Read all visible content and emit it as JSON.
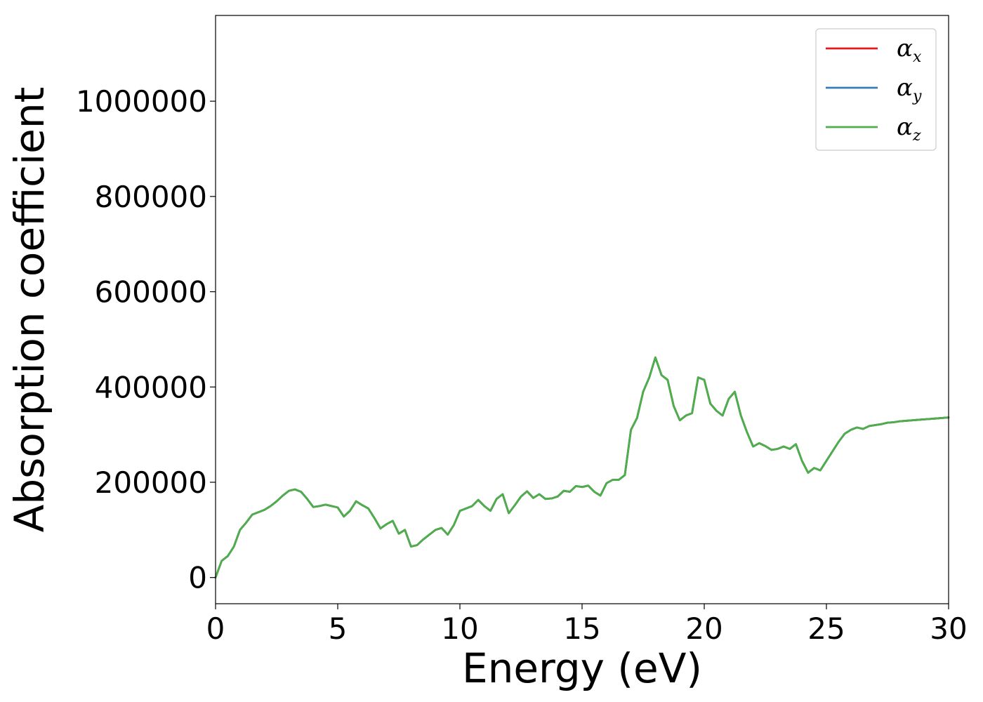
{
  "chart_data": {
    "type": "line",
    "title": "",
    "xlabel": "Energy (eV)",
    "ylabel": "Absorption coefficient",
    "xlim": [
      0,
      30
    ],
    "ylim": [
      -55000,
      1180000
    ],
    "x_ticks": [
      0,
      5,
      10,
      15,
      20,
      25,
      30
    ],
    "x_tick_labels": [
      "0",
      "5",
      "10",
      "15",
      "20",
      "25",
      "30"
    ],
    "y_ticks": [
      0,
      200000,
      400000,
      600000,
      800000,
      1000000
    ],
    "y_tick_labels": [
      "0",
      "200000",
      "400000",
      "600000",
      "800000",
      "1000000"
    ],
    "grid": false,
    "legend_position": "top-right",
    "x": [
      0,
      0.25,
      0.5,
      0.75,
      1.0,
      1.25,
      1.5,
      1.75,
      2.0,
      2.25,
      2.5,
      2.75,
      3.0,
      3.25,
      3.5,
      3.75,
      4.0,
      4.25,
      4.5,
      4.75,
      5.0,
      5.25,
      5.5,
      5.75,
      6.0,
      6.25,
      6.5,
      6.75,
      7.0,
      7.25,
      7.5,
      7.75,
      8.0,
      8.25,
      8.5,
      8.75,
      9.0,
      9.25,
      9.5,
      9.75,
      10.0,
      10.25,
      10.5,
      10.75,
      11.0,
      11.25,
      11.5,
      11.75,
      12.0,
      12.25,
      12.5,
      12.75,
      13.0,
      13.25,
      13.5,
      13.75,
      14.0,
      14.25,
      14.5,
      14.75,
      15.0,
      15.25,
      15.5,
      15.75,
      16.0,
      16.25,
      16.5,
      16.75,
      17.0,
      17.25,
      17.5,
      17.75,
      18.0,
      18.25,
      18.5,
      18.75,
      19.0,
      19.25,
      19.5,
      19.75,
      20.0,
      20.25,
      20.5,
      20.75,
      21.0,
      21.25,
      21.5,
      21.75,
      22.0,
      22.25,
      22.5,
      22.75,
      23.0,
      23.25,
      23.5,
      23.75,
      24.0,
      24.25,
      24.5,
      24.75,
      25.0,
      25.25,
      25.5,
      25.75,
      26.0,
      26.25,
      26.5,
      26.75,
      27.0,
      27.25,
      27.5,
      27.75,
      28.0,
      28.25,
      28.5,
      28.75,
      29.0,
      29.25,
      29.5,
      29.75,
      30.0
    ],
    "series": [
      {
        "name": "α_x",
        "color": "#e41a1c",
        "values": [
          0,
          35000,
          45000,
          65000,
          100000,
          115000,
          132000,
          137000,
          142000,
          150000,
          160000,
          172000,
          182000,
          185000,
          180000,
          165000,
          148000,
          150000,
          153000,
          150000,
          147000,
          128000,
          140000,
          160000,
          152000,
          145000,
          125000,
          103000,
          112000,
          119000,
          92000,
          100000,
          65000,
          68000,
          80000,
          90000,
          100000,
          104000,
          90000,
          110000,
          140000,
          145000,
          150000,
          163000,
          150000,
          140000,
          165000,
          175000,
          135000,
          152000,
          170000,
          181000,
          167000,
          175000,
          165000,
          166000,
          170000,
          182000,
          180000,
          192000,
          190000,
          193000,
          180000,
          172000,
          198000,
          205000,
          205000,
          215000,
          310000,
          335000,
          390000,
          420000,
          462000,
          425000,
          415000,
          360000,
          330000,
          340000,
          345000,
          420000,
          415000,
          365000,
          350000,
          340000,
          375000,
          390000,
          340000,
          305000,
          275000,
          282000,
          276000,
          268000,
          270000,
          275000,
          270000,
          280000,
          245000,
          220000,
          230000,
          225000,
          245000,
          265000,
          285000,
          302000,
          310000,
          315000,
          312000,
          318000,
          320000,
          322000,
          325000,
          326000,
          328000,
          329000,
          330000,
          331000,
          332000,
          333000,
          334000,
          335000,
          336000
        ]
      },
      {
        "name": "α_y",
        "color": "#377eb8",
        "values": [
          0,
          35000,
          45000,
          65000,
          100000,
          115000,
          132000,
          137000,
          142000,
          150000,
          160000,
          172000,
          182000,
          185000,
          180000,
          165000,
          148000,
          150000,
          153000,
          150000,
          147000,
          128000,
          140000,
          160000,
          152000,
          145000,
          125000,
          103000,
          112000,
          119000,
          92000,
          100000,
          65000,
          68000,
          80000,
          90000,
          100000,
          104000,
          90000,
          110000,
          140000,
          145000,
          150000,
          163000,
          150000,
          140000,
          165000,
          175000,
          135000,
          152000,
          170000,
          181000,
          167000,
          175000,
          165000,
          166000,
          170000,
          182000,
          180000,
          192000,
          190000,
          193000,
          180000,
          172000,
          198000,
          205000,
          205000,
          215000,
          310000,
          335000,
          390000,
          420000,
          462000,
          425000,
          415000,
          360000,
          330000,
          340000,
          345000,
          420000,
          415000,
          365000,
          350000,
          340000,
          375000,
          390000,
          340000,
          305000,
          275000,
          282000,
          276000,
          268000,
          270000,
          275000,
          270000,
          280000,
          245000,
          220000,
          230000,
          225000,
          245000,
          265000,
          285000,
          302000,
          310000,
          315000,
          312000,
          318000,
          320000,
          322000,
          325000,
          326000,
          328000,
          329000,
          330000,
          331000,
          332000,
          333000,
          334000,
          335000,
          336000
        ]
      },
      {
        "name": "α_z",
        "color": "#4daf4a",
        "values": [
          0,
          35000,
          45000,
          65000,
          100000,
          115000,
          132000,
          137000,
          142000,
          150000,
          160000,
          172000,
          182000,
          185000,
          180000,
          165000,
          148000,
          150000,
          153000,
          150000,
          147000,
          128000,
          140000,
          160000,
          152000,
          145000,
          125000,
          103000,
          112000,
          119000,
          92000,
          100000,
          65000,
          68000,
          80000,
          90000,
          100000,
          104000,
          90000,
          110000,
          140000,
          145000,
          150000,
          163000,
          150000,
          140000,
          165000,
          175000,
          135000,
          152000,
          170000,
          181000,
          167000,
          175000,
          165000,
          166000,
          170000,
          182000,
          180000,
          192000,
          190000,
          193000,
          180000,
          172000,
          198000,
          205000,
          205000,
          215000,
          310000,
          335000,
          390000,
          420000,
          462000,
          425000,
          415000,
          360000,
          330000,
          340000,
          345000,
          420000,
          415000,
          365000,
          350000,
          340000,
          375000,
          390000,
          340000,
          305000,
          275000,
          282000,
          276000,
          268000,
          270000,
          275000,
          270000,
          280000,
          245000,
          220000,
          230000,
          225000,
          245000,
          265000,
          285000,
          302000,
          310000,
          315000,
          312000,
          318000,
          320000,
          322000,
          325000,
          326000,
          328000,
          329000,
          330000,
          331000,
          332000,
          333000,
          334000,
          335000,
          336000
        ]
      }
    ],
    "legend": [
      {
        "base": "α",
        "sub": "x",
        "color": "#e41a1c"
      },
      {
        "base": "α",
        "sub": "y",
        "color": "#377eb8"
      },
      {
        "base": "α",
        "sub": "z",
        "color": "#4daf4a"
      }
    ]
  }
}
